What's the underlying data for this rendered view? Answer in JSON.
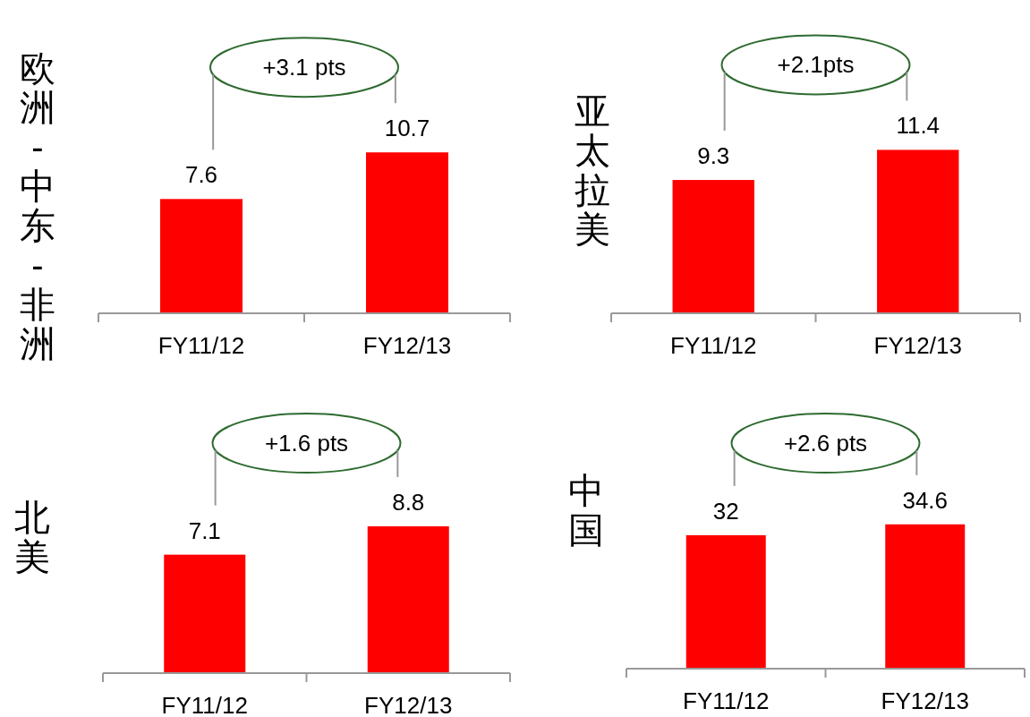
{
  "chart_data": [
    {
      "type": "bar",
      "ylabel": "欧洲-中东-非洲",
      "categories": [
        "FY11/12",
        "FY12/13"
      ],
      "values": [
        7.6,
        10.7
      ],
      "color": "#ff0000",
      "data_labels": true,
      "tick_labels": "x",
      "annotations": [
        "+3.1 pts"
      ]
    },
    {
      "type": "bar",
      "ylabel": "亚太拉美",
      "categories": [
        "FY11/12",
        "FY12/13"
      ],
      "values": [
        9.3,
        11.4
      ],
      "color": "#ff0000",
      "data_labels": true,
      "tick_labels": "x",
      "annotations": [
        "+2.1pts"
      ]
    },
    {
      "type": "bar",
      "ylabel": "北美",
      "categories": [
        "FY11/12",
        "FY12/13"
      ],
      "values": [
        7.1,
        8.8
      ],
      "color": "#ff0000",
      "data_labels": true,
      "tick_labels": "x",
      "annotations": [
        "+1.6 pts"
      ]
    },
    {
      "type": "bar",
      "ylabel": "中国",
      "categories": [
        "FY11/12",
        "FY12/13"
      ],
      "values": [
        32,
        34.6
      ],
      "color": "#ff0000",
      "data_labels": true,
      "tick_labels": "x",
      "annotations": [
        "+2.6 pts"
      ]
    }
  ]
}
